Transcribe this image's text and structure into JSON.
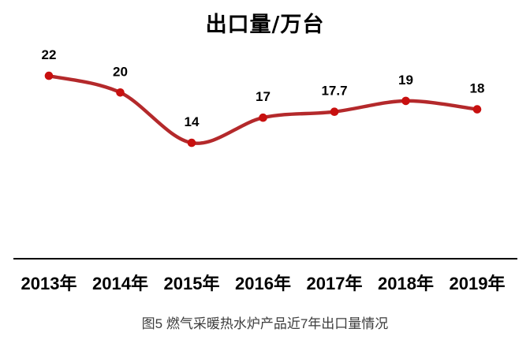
{
  "title": "出口量/万台",
  "caption": "图5 燃气采暖热水炉产品近7年出口量情况",
  "colors": {
    "line": "#b4292b",
    "marker": "#c8100f",
    "axis": "#000000",
    "value_label": "#000000",
    "category_label": "#000000",
    "caption": "#3d3d3d",
    "background": "#ffffff"
  },
  "chart_data": {
    "type": "line",
    "title": "出口量/万台",
    "categories": [
      "2013年",
      "2014年",
      "2015年",
      "2016年",
      "2017年",
      "2018年",
      "2019年"
    ],
    "series": [
      {
        "name": "出口量/万台",
        "values": [
          22,
          20,
          14,
          17,
          17.7,
          19,
          18
        ]
      }
    ],
    "data_labels": [
      "22",
      "20",
      "14",
      "17",
      "17.7",
      "19",
      "18"
    ],
    "xlabel": "",
    "ylabel": "",
    "ylim": [
      0,
      24
    ],
    "grid": false,
    "legend": "none",
    "smooth": true,
    "x_axis_line": true,
    "y_axis_line": false
  }
}
